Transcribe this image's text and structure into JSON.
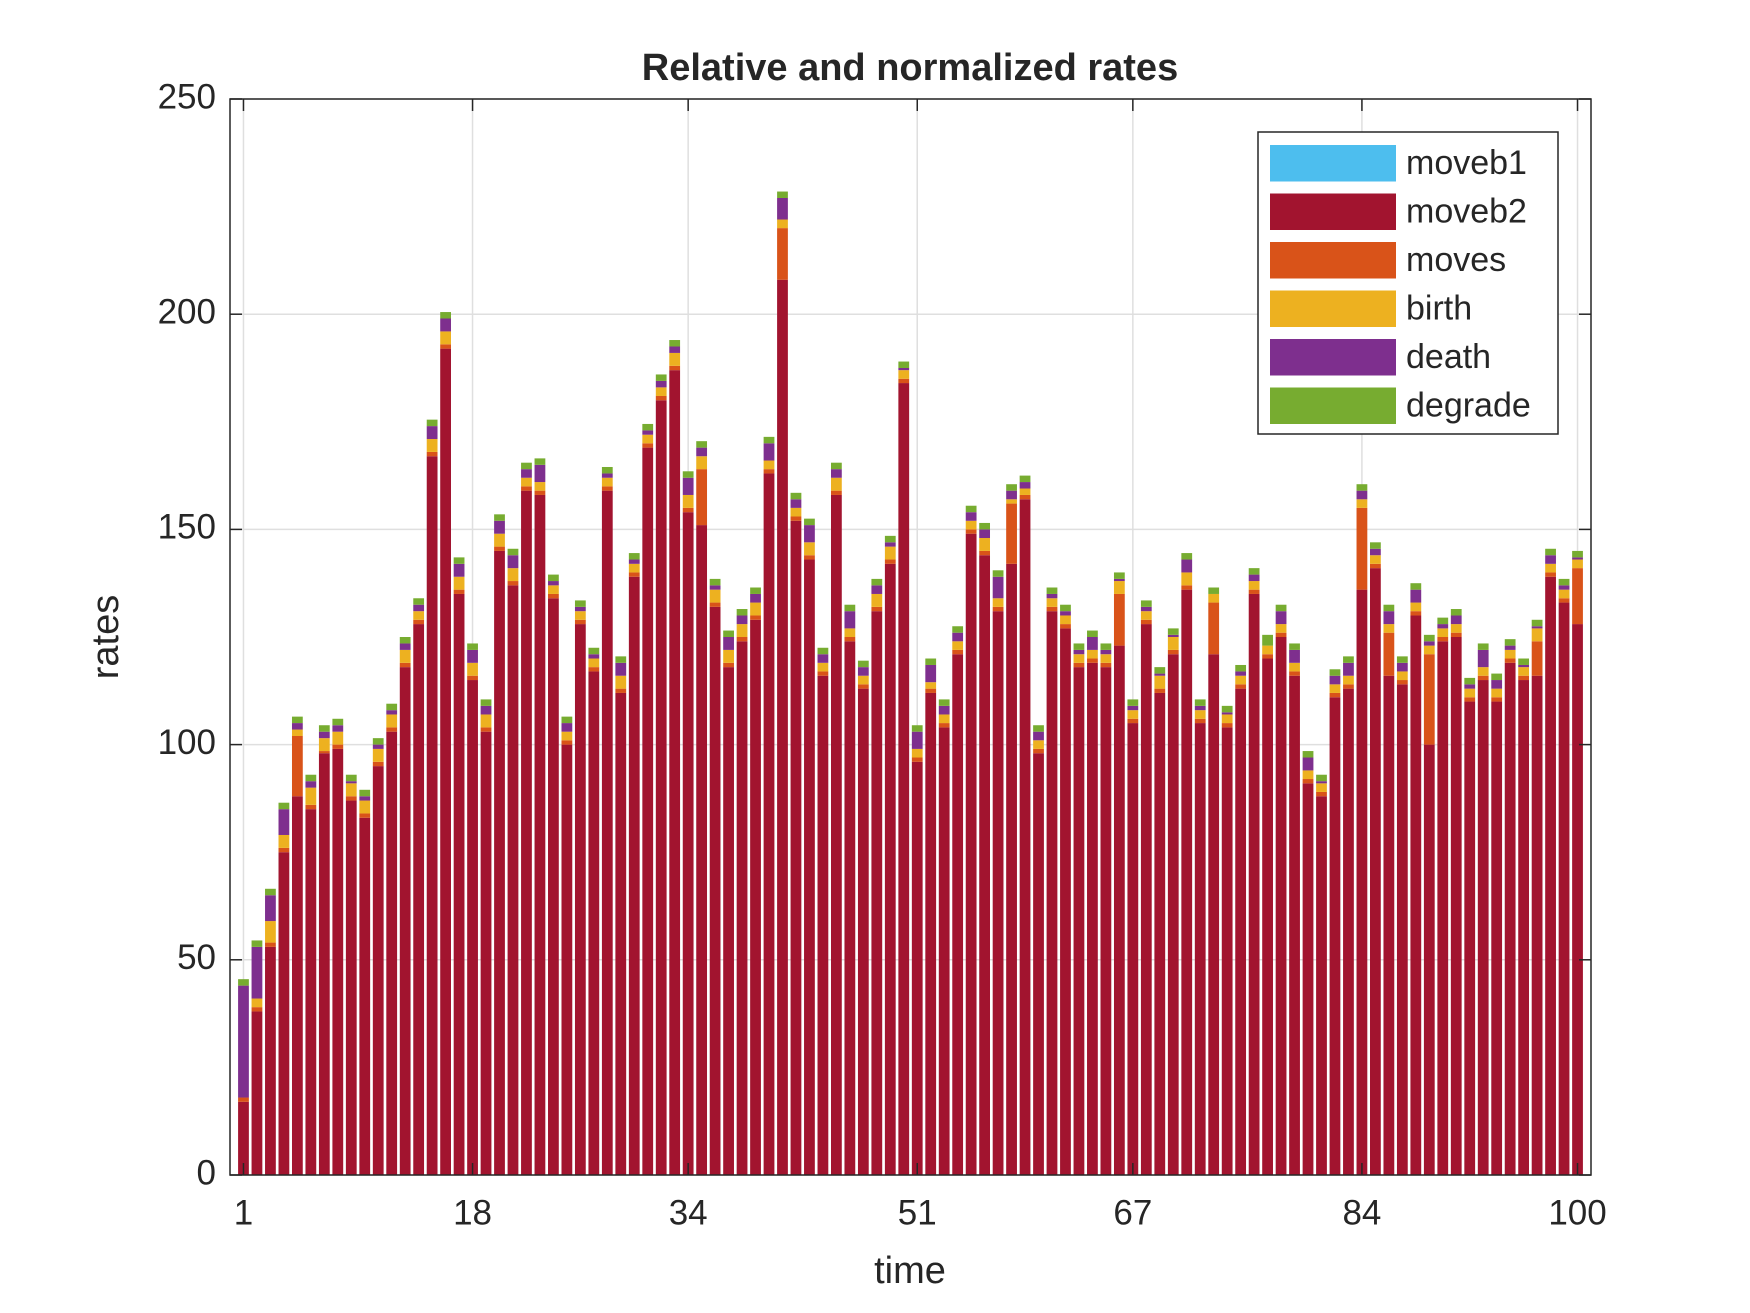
{
  "chart_data": {
    "type": "stacked_bar",
    "title": "Relative and normalized rates",
    "xlabel": "time",
    "ylabel": "rates",
    "x": [
      1,
      2,
      3,
      4,
      5,
      6,
      7,
      8,
      9,
      10,
      11,
      12,
      13,
      14,
      15,
      16,
      17,
      18,
      19,
      20,
      21,
      22,
      23,
      24,
      25,
      26,
      27,
      28,
      29,
      30,
      31,
      32,
      33,
      34,
      35,
      36,
      37,
      38,
      39,
      40,
      41,
      42,
      43,
      44,
      45,
      46,
      47,
      48,
      49,
      50,
      51,
      52,
      53,
      54,
      55,
      56,
      57,
      58,
      59,
      60,
      61,
      62,
      63,
      64,
      65,
      66,
      67,
      68,
      69,
      70,
      71,
      72,
      73,
      74,
      75,
      76,
      77,
      78,
      79,
      80,
      81,
      82,
      83,
      84,
      85,
      86,
      87,
      88,
      89,
      90,
      91,
      92,
      93,
      94,
      95,
      96,
      97,
      98,
      99,
      100
    ],
    "series": [
      {
        "name": "moveb1",
        "color": "#4dbeee",
        "values": [
          0,
          0,
          0,
          0,
          0,
          0,
          0,
          0,
          0,
          0,
          0,
          0,
          0,
          0,
          0,
          0,
          0,
          0,
          0,
          0,
          0,
          0,
          0,
          0,
          0,
          0,
          0,
          0,
          0,
          0,
          0,
          0,
          0,
          0,
          0,
          0,
          0,
          0,
          0,
          0,
          0,
          0,
          0,
          0,
          0,
          0,
          0,
          0,
          0,
          0,
          0,
          0,
          0,
          0,
          0,
          0,
          0,
          0,
          0,
          0,
          0,
          0,
          0,
          0,
          0,
          0,
          0,
          0,
          0,
          0,
          0,
          0,
          0,
          0,
          0,
          0,
          0,
          0,
          0,
          0,
          0,
          0,
          0,
          0,
          0,
          0,
          0,
          0,
          0,
          0,
          0,
          0,
          0,
          0,
          0,
          0,
          0,
          0,
          0,
          0
        ]
      },
      {
        "name": "moveb2",
        "color": "#a2142f",
        "values": [
          17,
          38,
          53,
          75,
          88,
          85,
          98,
          99,
          87,
          83,
          95,
          103,
          118,
          128,
          167,
          192,
          135,
          115,
          103,
          145,
          137,
          159,
          158,
          134,
          100,
          128,
          117,
          159,
          112,
          139,
          169,
          180,
          187,
          154,
          151,
          132,
          118,
          124,
          129,
          163,
          208,
          152,
          143,
          116,
          158,
          124,
          113,
          131,
          142,
          184,
          96,
          112,
          104,
          121,
          149,
          144,
          131,
          142,
          157,
          98,
          131,
          127,
          118,
          119,
          118,
          123,
          105,
          128,
          112,
          121,
          136,
          105,
          121,
          104,
          113,
          135,
          120,
          125,
          116,
          91,
          88,
          111,
          113,
          136,
          141,
          116,
          114,
          130,
          100,
          124,
          125,
          110,
          115,
          110,
          119,
          115,
          116,
          139,
          133,
          128
        ]
      },
      {
        "name": "moves",
        "color": "#d95319",
        "values": [
          1,
          1,
          1,
          1,
          14,
          1,
          0.5,
          1,
          1,
          1,
          1,
          1,
          1,
          1,
          1,
          1,
          1,
          1,
          1,
          1,
          1,
          1,
          1,
          1,
          1,
          1,
          1,
          1,
          1,
          1,
          1,
          1,
          1,
          1,
          13,
          1,
          1,
          1,
          1,
          1,
          12,
          1,
          1,
          1,
          1,
          1,
          1,
          1,
          1,
          1,
          1,
          1,
          1,
          1,
          1,
          1,
          1,
          14,
          1,
          1,
          1,
          1,
          1,
          1,
          1,
          12,
          1,
          1,
          1,
          1,
          1,
          1,
          12,
          1,
          1,
          1,
          1,
          1,
          1,
          1,
          1,
          1,
          1,
          19,
          1,
          10,
          1,
          1,
          21,
          1,
          1,
          1,
          1,
          1,
          1,
          1,
          8,
          1,
          1,
          13
        ]
      },
      {
        "name": "birth",
        "color": "#edb120",
        "values": [
          0,
          2,
          5,
          3,
          1.5,
          4,
          3,
          3,
          3,
          3,
          3,
          3,
          3,
          2,
          3,
          3,
          3,
          3,
          3,
          3,
          3,
          2,
          2,
          2,
          2,
          2,
          2,
          2,
          3,
          2,
          2,
          2,
          3,
          3,
          3,
          3,
          3,
          3,
          3,
          2,
          2,
          2,
          3,
          2,
          3,
          2,
          2,
          3,
          3,
          2,
          2,
          1.5,
          2,
          2,
          2,
          3,
          2,
          1,
          1.5,
          2,
          2,
          2,
          2,
          2,
          2,
          3,
          2,
          2,
          3,
          3,
          3,
          2,
          2,
          2,
          2,
          2,
          2,
          2,
          2,
          2,
          2,
          2,
          2,
          2,
          2,
          2,
          2,
          2,
          2,
          2,
          2,
          2,
          2,
          2,
          2,
          2,
          3,
          2,
          2,
          2
        ]
      },
      {
        "name": "death",
        "color": "#7e2f8e",
        "values": [
          26,
          12,
          6,
          6,
          1.5,
          1.5,
          1.5,
          1.5,
          0.5,
          1,
          1,
          1,
          1.5,
          1.5,
          3,
          3,
          3,
          3,
          2,
          3,
          3,
          2,
          4,
          1,
          2,
          1,
          1,
          1,
          3,
          1,
          1,
          1.5,
          1.5,
          4,
          2,
          1,
          3,
          2,
          2,
          4,
          5,
          2,
          4,
          2,
          2,
          4,
          2,
          2,
          1,
          0.5,
          4,
          4,
          2,
          2,
          2,
          2,
          5,
          2,
          1.5,
          2,
          1,
          1,
          1,
          3,
          1,
          0.5,
          1,
          1,
          0.5,
          0.5,
          3,
          1,
          0,
          0.5,
          1,
          1.5,
          0,
          3,
          3,
          3,
          0.5,
          2,
          3,
          2,
          1.5,
          3,
          2,
          3,
          1,
          1,
          2,
          1,
          4,
          2,
          1,
          0.5,
          0.5,
          2,
          1,
          0.5
        ]
      },
      {
        "name": "degrade",
        "color": "#77ac30",
        "values": [
          1.5,
          1.5,
          1.5,
          1.5,
          1.5,
          1.5,
          1.5,
          1.5,
          1.5,
          1.5,
          1.5,
          1.5,
          1.5,
          1.5,
          1.5,
          1.5,
          1.5,
          1.5,
          1.5,
          1.5,
          1.5,
          1.5,
          1.5,
          1.5,
          1.5,
          1.5,
          1.5,
          1.5,
          1.5,
          1.5,
          1.5,
          1.5,
          1.5,
          1.5,
          1.5,
          1.5,
          1.5,
          1.5,
          1.5,
          1.5,
          1.5,
          1.5,
          1.5,
          1.5,
          1.5,
          1.5,
          1.5,
          1.5,
          1.5,
          1.5,
          1.5,
          1.5,
          1.5,
          1.5,
          1.5,
          1.5,
          1.5,
          1.5,
          1.5,
          1.5,
          1.5,
          1.5,
          1.5,
          1.5,
          1.5,
          1.5,
          1.5,
          1.5,
          1.5,
          1.5,
          1.5,
          1.5,
          1.5,
          1.5,
          1.5,
          1.5,
          2.5,
          1.5,
          1.5,
          1.5,
          1.5,
          1.5,
          1.5,
          1.5,
          1.5,
          1.5,
          1.5,
          1.5,
          1.5,
          1.5,
          1.5,
          1.5,
          1.5,
          1.5,
          1.5,
          1.5,
          1.5,
          1.5,
          1.5,
          1.5
        ]
      }
    ],
    "xlim": [
      0,
      101
    ],
    "xticks": [
      1,
      18,
      34,
      51,
      67,
      84,
      100
    ],
    "ylim": [
      0,
      250
    ],
    "yticks": [
      0,
      50,
      100,
      150,
      200,
      250
    ],
    "grid": true,
    "legend_position": "upper right"
  }
}
